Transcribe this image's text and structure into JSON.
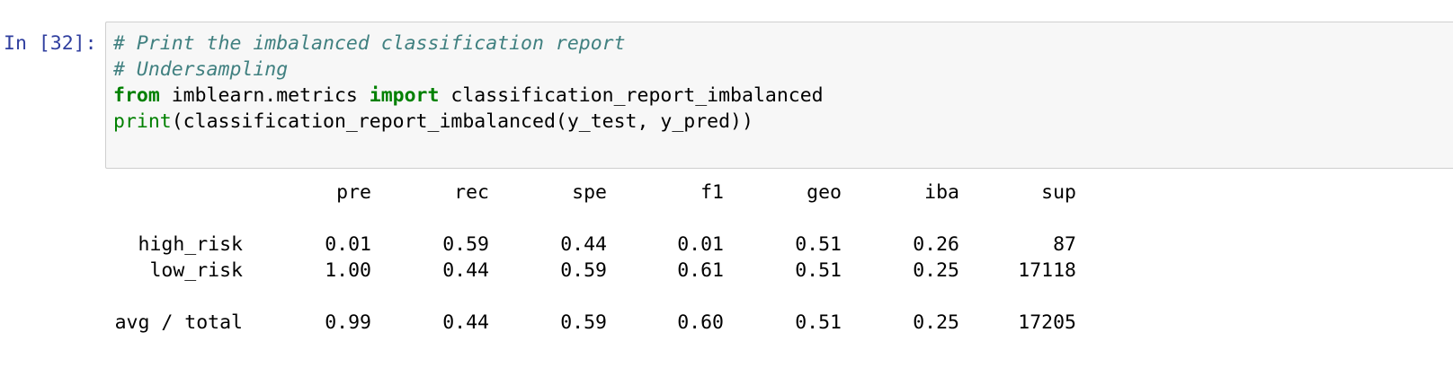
{
  "prompt": "In [32]:",
  "code": {
    "lines": [
      [
        {
          "text": "# Print the imbalanced classification report",
          "style": "comment"
        }
      ],
      [
        {
          "text": "# Undersampling",
          "style": "comment"
        }
      ],
      [
        {
          "text": "from",
          "style": "keyword"
        },
        {
          "text": " imblearn.metrics ",
          "style": "plain"
        },
        {
          "text": "import",
          "style": "keyword"
        },
        {
          "text": " classification_report_imbalanced",
          "style": "plain"
        }
      ],
      [
        {
          "text": "print",
          "style": "builtin"
        },
        {
          "text": "(classification_report_imbalanced(y_test, y_pred))",
          "style": "plain"
        }
      ]
    ]
  },
  "output": {
    "table": {
      "header": [
        "pre",
        "rec",
        "spe",
        "f1",
        "geo",
        "iba",
        "sup"
      ],
      "rows": [
        [
          "high_risk",
          "0.01",
          "0.59",
          "0.44",
          "0.01",
          "0.51",
          "0.26",
          "87"
        ],
        [
          "low_risk",
          "1.00",
          "0.44",
          "0.59",
          "0.61",
          "0.51",
          "0.25",
          "17118"
        ],
        [
          "avg / total",
          "0.99",
          "0.44",
          "0.59",
          "0.60",
          "0.51",
          "0.25",
          "17205"
        ]
      ]
    }
  }
}
